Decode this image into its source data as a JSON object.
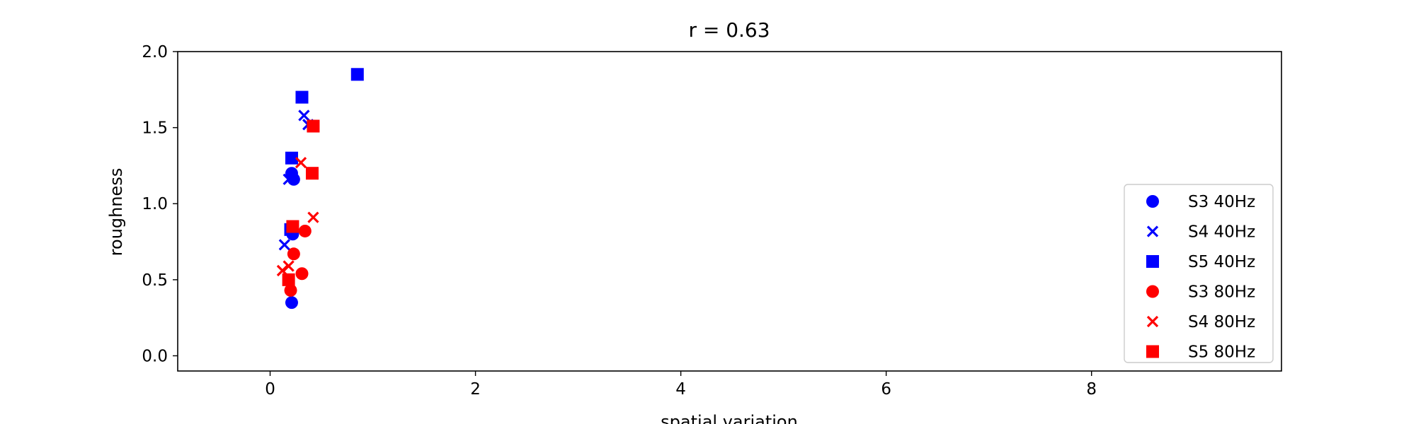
{
  "chart_data": {
    "type": "scatter",
    "title": "r = 0.63",
    "xlabel": "spatial variation",
    "ylabel": "roughness",
    "xlim": [
      -0.9,
      9.85
    ],
    "ylim": [
      -0.1,
      2.0
    ],
    "xticks": [
      0,
      2,
      4,
      6,
      8
    ],
    "yticks": [
      0.0,
      0.5,
      1.0,
      1.5,
      2.0
    ],
    "xtick_labels": [
      "0",
      "2",
      "4",
      "6",
      "8"
    ],
    "ytick_labels": [
      "0.0",
      "0.5",
      "1.0",
      "1.5",
      "2.0"
    ],
    "grid": false,
    "legend_position": "lower-right",
    "series": [
      {
        "name": "S3 40Hz",
        "marker": "circle",
        "color": "#0000ff",
        "x": [
          0.21,
          0.22,
          0.23,
          0.21,
          0.2
        ],
        "y": [
          0.35,
          0.8,
          1.16,
          1.2,
          0.84
        ]
      },
      {
        "name": "S4 40Hz",
        "marker": "x",
        "color": "#0000ff",
        "x": [
          0.14,
          0.18,
          0.33,
          0.37
        ],
        "y": [
          0.73,
          1.16,
          1.58,
          1.52
        ]
      },
      {
        "name": "S5 40Hz",
        "marker": "square",
        "color": "#0000ff",
        "x": [
          0.2,
          0.21,
          0.31,
          0.85
        ],
        "y": [
          0.83,
          1.3,
          1.7,
          1.85
        ]
      },
      {
        "name": "S3 80Hz",
        "marker": "circle",
        "color": "#ff0000",
        "x": [
          0.2,
          0.23,
          0.31,
          0.34
        ],
        "y": [
          0.43,
          0.67,
          0.54,
          0.82
        ]
      },
      {
        "name": "S4 80Hz",
        "marker": "x",
        "color": "#ff0000",
        "x": [
          0.12,
          0.18,
          0.3,
          0.42
        ],
        "y": [
          0.56,
          0.59,
          1.27,
          0.91
        ]
      },
      {
        "name": "S5 80Hz",
        "marker": "square",
        "color": "#ff0000",
        "x": [
          0.18,
          0.22,
          0.41,
          0.42
        ],
        "y": [
          0.5,
          0.85,
          1.2,
          1.51
        ]
      }
    ]
  }
}
